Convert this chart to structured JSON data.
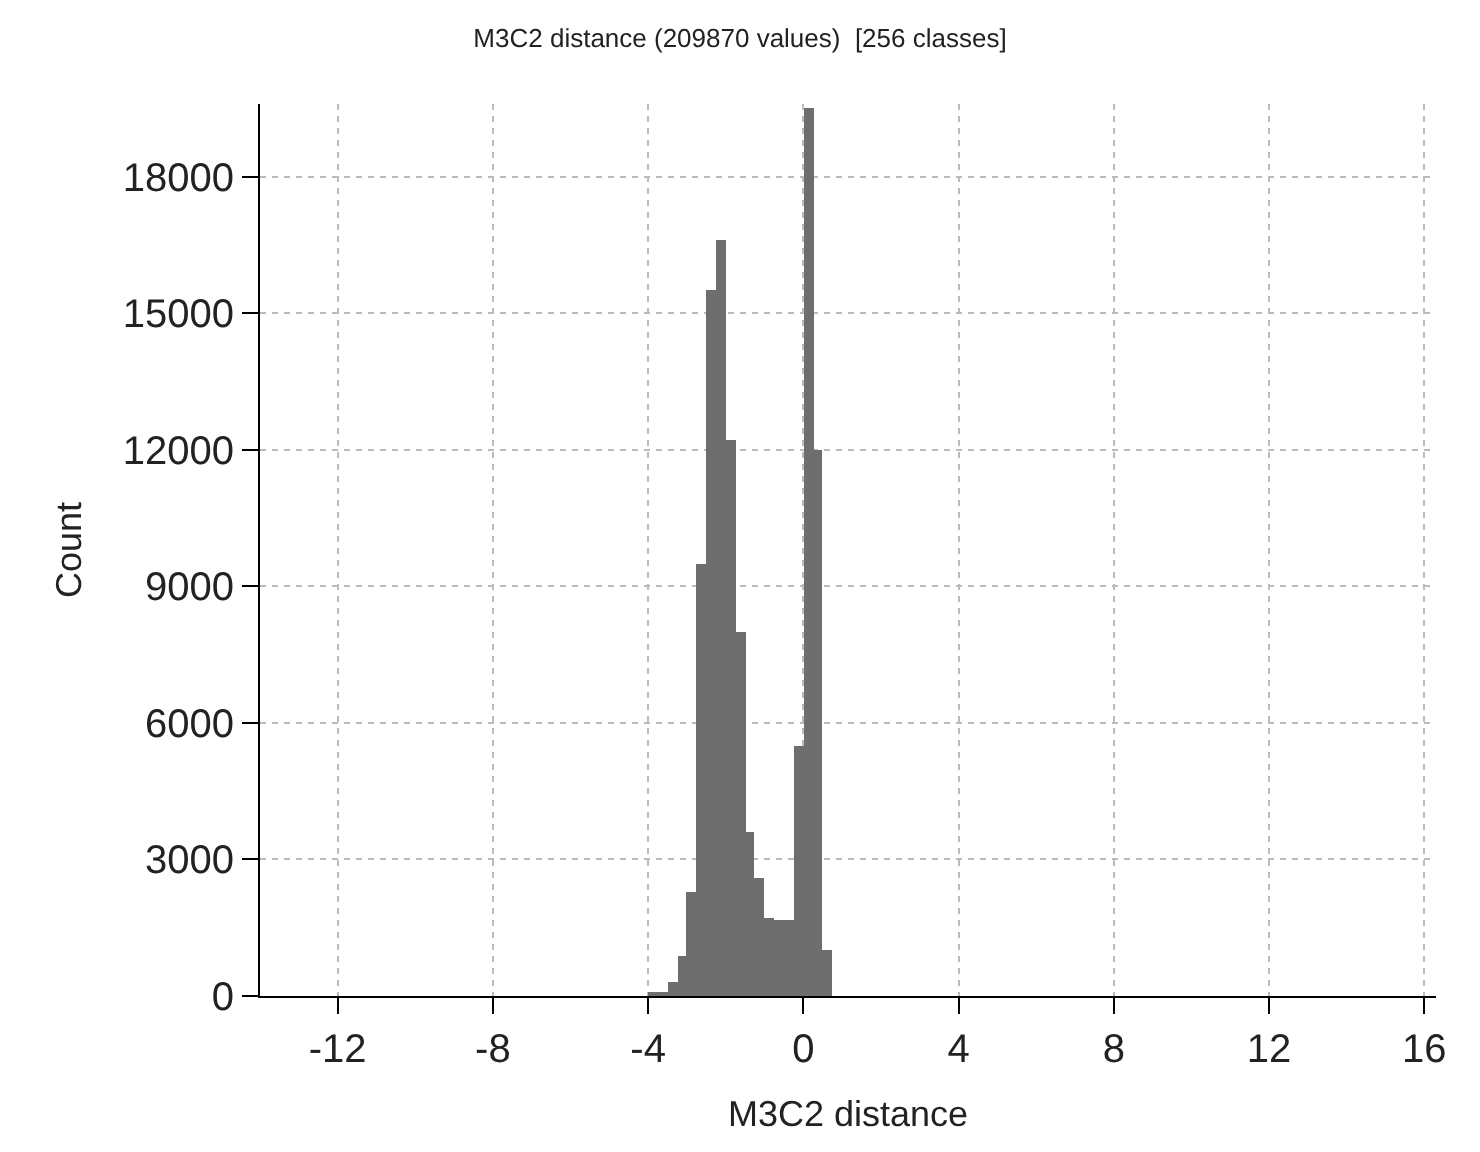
{
  "chart_data": {
    "type": "histogram",
    "title": "M3C2 distance (209870 values)  [256 classes]",
    "xlabel": "M3C2 distance",
    "ylabel": "Count",
    "bins": [
      -4,
      -3.75,
      -3.5,
      -3.25,
      -3,
      -2.75,
      -2.5,
      -2.25,
      -2,
      -1.75,
      -1.5,
      -1.25,
      -1,
      -0.75,
      -0.5,
      -0.25,
      0,
      0.25,
      0.5,
      0.75
    ],
    "values": [
      50,
      100,
      300,
      900,
      2300,
      9500,
      15500,
      16600,
      12200,
      8000,
      3600,
      2600,
      1700,
      1650,
      1650,
      5500,
      19500,
      12000,
      1000
    ],
    "color": "#6e6e6e",
    "xlim": [
      -14,
      16.3
    ],
    "xticks": [
      -12,
      -8,
      -4,
      0,
      4,
      8,
      12,
      16
    ],
    "ylim": [
      0,
      19600
    ],
    "yticks": [
      0,
      3000,
      6000,
      9000,
      12000,
      15000,
      18000
    ],
    "grid": true
  }
}
